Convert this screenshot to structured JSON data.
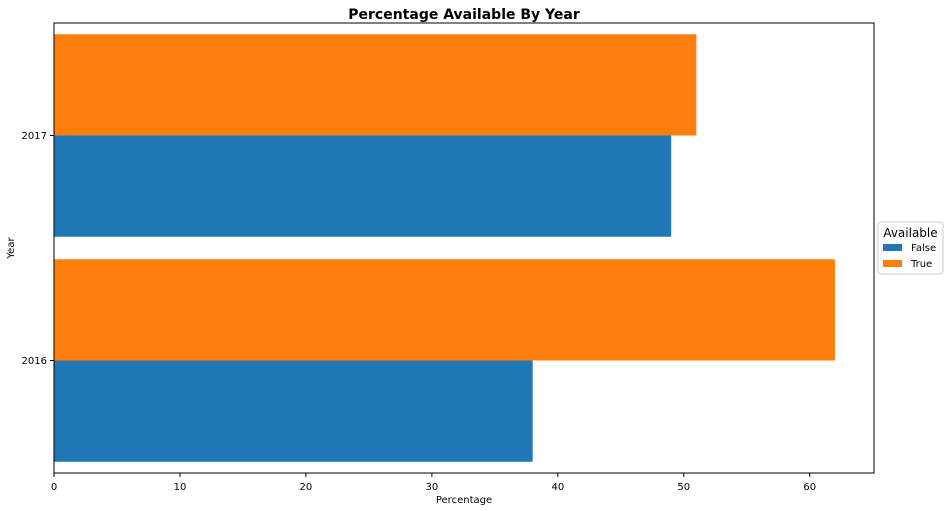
{
  "chart_data": {
    "type": "bar",
    "orientation": "horizontal",
    "title": "Percentage Available By Year",
    "xlabel": "Percentage",
    "ylabel": "Year",
    "categories": [
      "2016",
      "2017"
    ],
    "series": [
      {
        "name": "False",
        "values": [
          38,
          49
        ],
        "color": "#1f77b4"
      },
      {
        "name": "True",
        "values": [
          62,
          51
        ],
        "color": "#ff7f0e"
      }
    ],
    "xlim": [
      0,
      65.1
    ],
    "xticks": [
      0,
      10,
      20,
      30,
      40,
      50,
      60
    ],
    "grid": false,
    "legend": {
      "title": "Available",
      "placement": "center-right-outside"
    }
  }
}
